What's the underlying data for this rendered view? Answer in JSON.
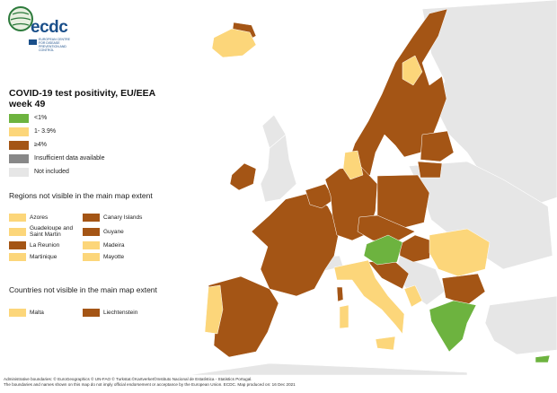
{
  "title": "COVID-19 test positivity, EU/EEA week 49",
  "colors": {
    "lt1": "#6db33f",
    "mid": "#fcd67a",
    "ge4": "#a45515",
    "insufficient": "#888888",
    "notincluded": "#e6e6e6",
    "border": "#ffffff"
  },
  "legend": [
    {
      "label": "<1%",
      "color": "#6db33f"
    },
    {
      "label": "1- 3.9%",
      "color": "#fcd67a"
    },
    {
      "label": "≥4%",
      "color": "#a45515"
    },
    {
      "label": "Insufficient data available",
      "color": "#888888"
    },
    {
      "label": "Not included",
      "color": "#e6e6e6"
    }
  ],
  "regions_heading": "Regions not visible in the main map extent",
  "regions": [
    {
      "label": "Azores",
      "color": "#fcd67a"
    },
    {
      "label": "Canary Islands",
      "color": "#a45515"
    },
    {
      "label": "Guadeloupe and Saint Martin",
      "color": "#fcd67a"
    },
    {
      "label": "Guyane",
      "color": "#a45515"
    },
    {
      "label": "La Reunion",
      "color": "#a45515"
    },
    {
      "label": "Madeira",
      "color": "#fcd67a"
    },
    {
      "label": "Martinique",
      "color": "#fcd67a"
    },
    {
      "label": "Mayotte",
      "color": "#fcd67a"
    }
  ],
  "countries_heading": "Countries not visible in the main map extent",
  "countries": [
    {
      "label": "Malta",
      "color": "#fcd67a"
    },
    {
      "label": "Liechtenstein",
      "color": "#a45515"
    }
  ],
  "footer": {
    "line1": "Administrative boundaries: © EuroGeographics © UN-FAO © Turkstat.©Kartverket©Instituto Nacional de Estatística - Statistics Portugal.",
    "line2": "The boundaries and names shown on this map do not imply official endorsement or acceptance by the European Union. ECDC. Map produced on: 16 Dec 2021"
  },
  "logo": {
    "text": "ecdc",
    "subtitle": "EUROPEAN CENTRE FOR DISEASE PREVENTION AND CONTROL"
  }
}
